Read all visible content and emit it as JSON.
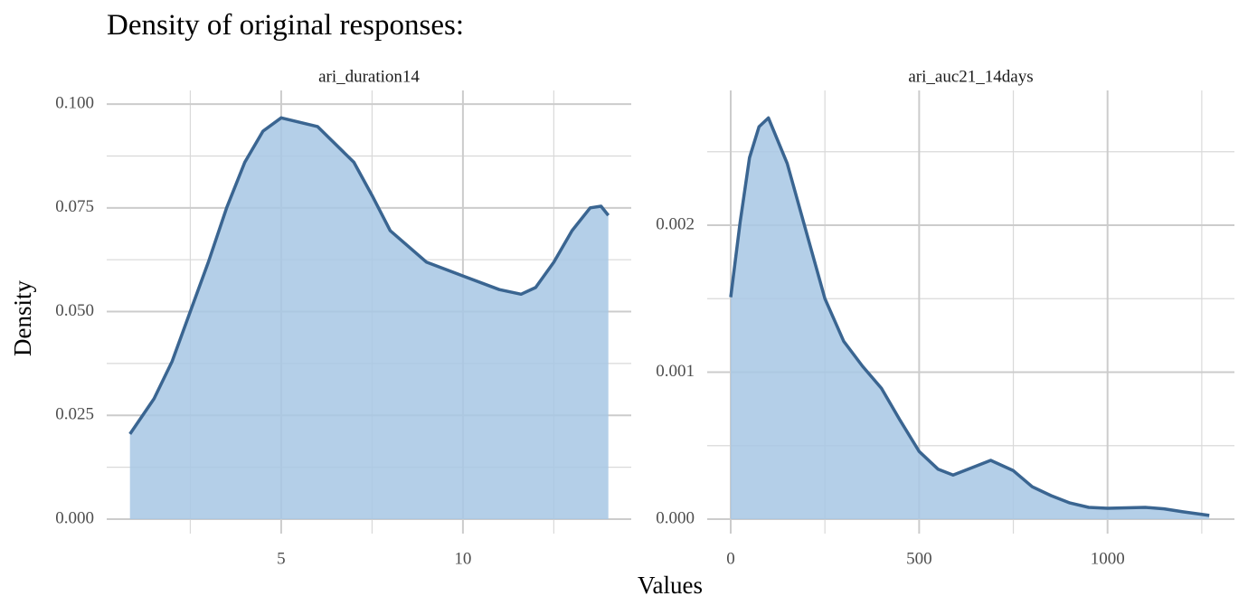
{
  "title": "Density of original responses:",
  "xlabel": "Values",
  "ylabel": "Density",
  "chart_data": [
    {
      "type": "area",
      "title": "ari_duration14",
      "color": "#a7c7e4",
      "line_color": "#3a6591",
      "grid": true,
      "x": [
        0.84,
        1.5,
        2,
        2.5,
        3,
        3.5,
        4,
        4.5,
        5,
        6,
        7,
        7.5,
        8,
        9,
        10,
        11,
        11.6,
        12,
        12.5,
        13,
        13.5,
        13.8,
        14
      ],
      "values": [
        0.0205,
        0.029,
        0.038,
        0.05,
        0.062,
        0.075,
        0.086,
        0.0935,
        0.0967,
        0.0946,
        0.086,
        0.078,
        0.0695,
        0.0619,
        0.0586,
        0.0553,
        0.0542,
        0.0558,
        0.0619,
        0.0695,
        0.075,
        0.0754,
        0.0732
      ],
      "xlim": [
        0.2,
        14.63
      ],
      "ylim": [
        -0.0035,
        0.1033
      ],
      "xticks": [
        5,
        10
      ],
      "xminor": [
        2.5,
        7.5,
        12.5
      ],
      "yticks": [
        {
          "value": 0,
          "label": "0.000"
        },
        0.025,
        {
          "value": 0.05,
          "label": "0.050"
        },
        0.075,
        {
          "value": 0.1,
          "label": "0.100"
        }
      ],
      "yminor": [
        0.0125,
        0.0375,
        0.0625,
        0.0875
      ]
    },
    {
      "type": "area",
      "title": "ari_auc21_14days",
      "color": "#a7c7e4",
      "line_color": "#3a6591",
      "grid": true,
      "x": [
        0,
        25,
        50,
        75,
        100,
        150,
        200,
        250,
        300,
        350,
        400,
        450,
        500,
        550,
        590,
        650,
        690,
        750,
        800,
        850,
        900,
        950,
        1000,
        1100,
        1150,
        1200,
        1270
      ],
      "values": [
        0.00151,
        0.00202,
        0.00246,
        0.00267,
        0.00273,
        0.00242,
        0.00196,
        0.0015,
        0.00121,
        0.00104,
        0.00089,
        0.00067,
        0.00046,
        0.00034,
        0.0003,
        0.00036,
        0.0004,
        0.00033,
        0.00022,
        0.00016,
        0.00011,
        8e-05,
        7.4e-05,
        8e-05,
        7e-05,
        5e-05,
        2.5e-05
      ],
      "xlim": [
        -62.4,
        1336.7
      ],
      "ylim": [
        -9.85e-05,
        0.002917
      ],
      "xticks": [
        0,
        500,
        1000
      ],
      "xminor": [
        250,
        750,
        1250
      ],
      "yticks": [
        {
          "value": 0,
          "label": "0.000"
        },
        0.001,
        0.002
      ],
      "yminor": [
        0.0005,
        0.0015,
        0.0025
      ]
    }
  ]
}
